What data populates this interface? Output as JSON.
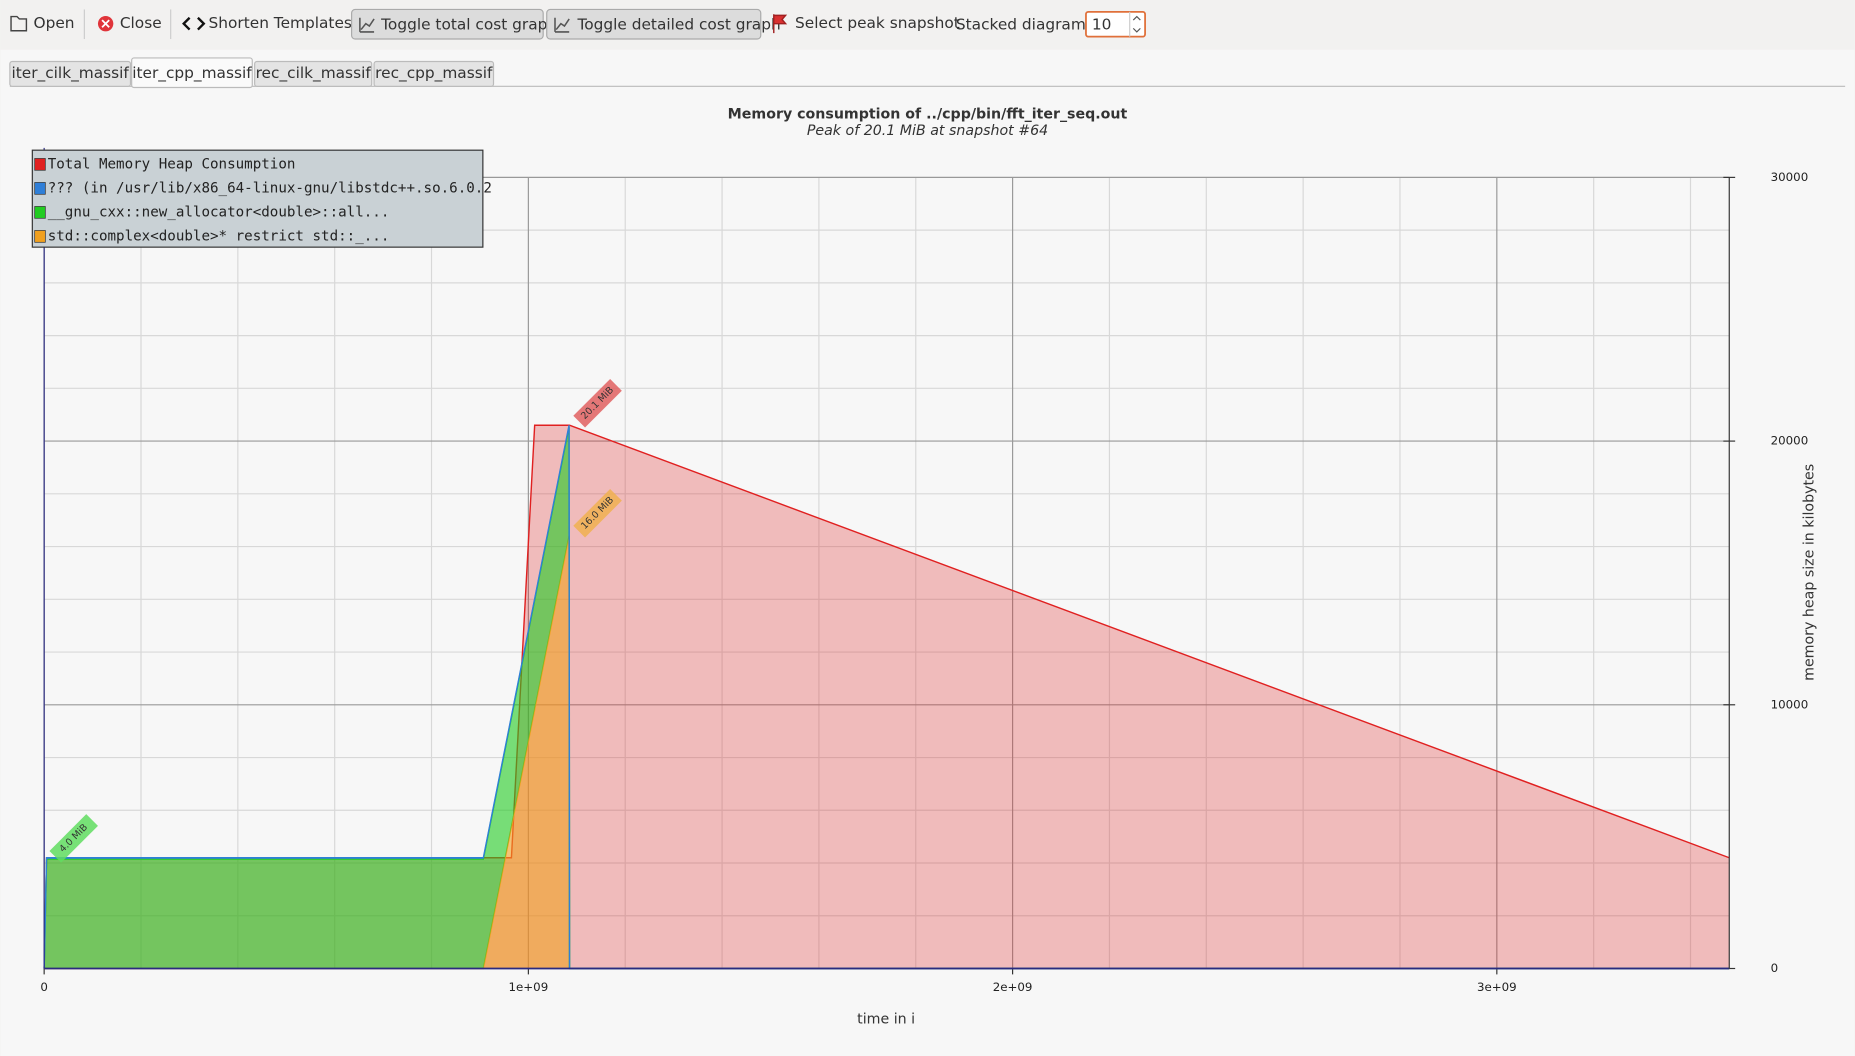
{
  "toolbar": {
    "open": "Open",
    "close": "Close",
    "shorten": "Shorten Templates",
    "toggle_total": "Toggle total cost graph",
    "toggle_detailed": "Toggle detailed cost graph",
    "peak": "Select peak snapshot",
    "stacked_label": "Stacked diagrams:",
    "stacked_value": "10"
  },
  "tabs": [
    "iter_cilk_massif",
    "iter_cpp_massif",
    "rec_cilk_massif",
    "rec_cpp_massif"
  ],
  "chart_data": {
    "type": "area",
    "title": "Memory consumption of ../cpp/bin/fft_iter_seq.out",
    "subtitle": "Peak of 20.1 MiB at snapshot #64",
    "x_label": "time in i",
    "y_label": "memory heap size in kilobytes",
    "x": [
      0,
      5000000,
      907000000,
      965000000,
      1013000000,
      1084000000,
      1085000000,
      3480000000
    ],
    "total": {
      "name": "Total Memory Heap Consumption",
      "color": "#e02020",
      "values": [
        0,
        4200,
        4200,
        4200,
        20600,
        20600,
        20600,
        4200
      ]
    },
    "series": [
      {
        "name": "??? (in /usr/lib/x86_64-linux-gnu/libstdc++.so.6.0.2",
        "color": "#2f7fd8",
        "values": [
          0,
          50,
          50,
          50,
          50,
          50,
          0,
          0
        ]
      },
      {
        "name": "__gnu_cxx::new_allocator<double>::all...",
        "color": "#22cc22",
        "values": [
          0,
          4150,
          4150,
          4150,
          4150,
          4150,
          0,
          0
        ]
      },
      {
        "name": "std::complex<double>* restrict std::_...",
        "color": "#f0a020",
        "values": [
          0,
          0,
          0,
          5370,
          9820,
          16400,
          0,
          0
        ]
      }
    ],
    "stacked": true,
    "annotations": [
      "20.1 MiB",
      "16.0 MiB",
      "4.0 MiB"
    ],
    "xlim": [
      0,
      3480000000
    ],
    "ylim": [
      0,
      30000
    ],
    "xticks": [
      0,
      {
        "value": 1000000000,
        "label": "1e+09"
      },
      {
        "value": 2000000000,
        "label": "2e+09"
      },
      {
        "value": 3000000000,
        "label": "3e+09"
      }
    ],
    "yticks": [
      0,
      10000,
      20000,
      30000
    ],
    "x_minor_grid": [
      200000000,
      400000000,
      600000000,
      800000000,
      1200000000,
      1400000000,
      1600000000,
      1800000000,
      2200000000,
      2400000000,
      2600000000,
      2800000000,
      3200000000,
      3400000000
    ],
    "y_minor_grid": [
      2000,
      4000,
      6000,
      8000,
      12000,
      14000,
      16000,
      18000,
      22000,
      24000,
      26000,
      28000
    ],
    "grid": true,
    "legend": "top-left"
  }
}
